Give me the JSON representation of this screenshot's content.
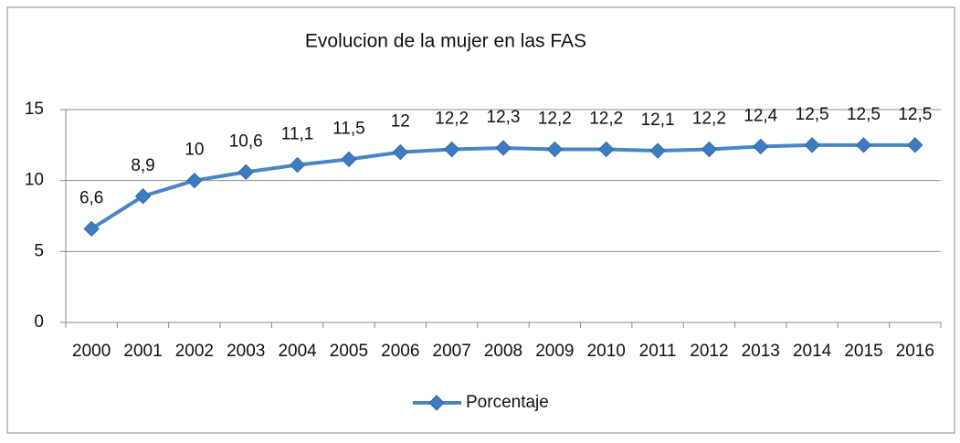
{
  "chart_data": {
    "type": "line",
    "title": "Evolucion de la mujer  en las FAS",
    "categories": [
      "2000",
      "2001",
      "2002",
      "2003",
      "2004",
      "2005",
      "2006",
      "2007",
      "2008",
      "2009",
      "2010",
      "2011",
      "2012",
      "2013",
      "2014",
      "2015",
      "2016"
    ],
    "series": [
      {
        "name": "Porcentaje",
        "color": "#4a86c5",
        "values": [
          6.6,
          8.9,
          10,
          10.6,
          11.1,
          11.5,
          12,
          12.2,
          12.3,
          12.2,
          12.2,
          12.1,
          12.2,
          12.4,
          12.5,
          12.5,
          12.5
        ],
        "value_labels": [
          "6,6",
          "8,9",
          "10",
          "10,6",
          "11,1",
          "11,5",
          "12",
          "12,2",
          "12,3",
          "12,2",
          "12,2",
          "12,1",
          "12,2",
          "12,4",
          "12,5",
          "12,5",
          "12,5"
        ]
      }
    ],
    "ylim": [
      0,
      15
    ],
    "yticks": [
      0,
      5,
      10,
      15
    ],
    "grid": true,
    "legend": "bottom"
  }
}
